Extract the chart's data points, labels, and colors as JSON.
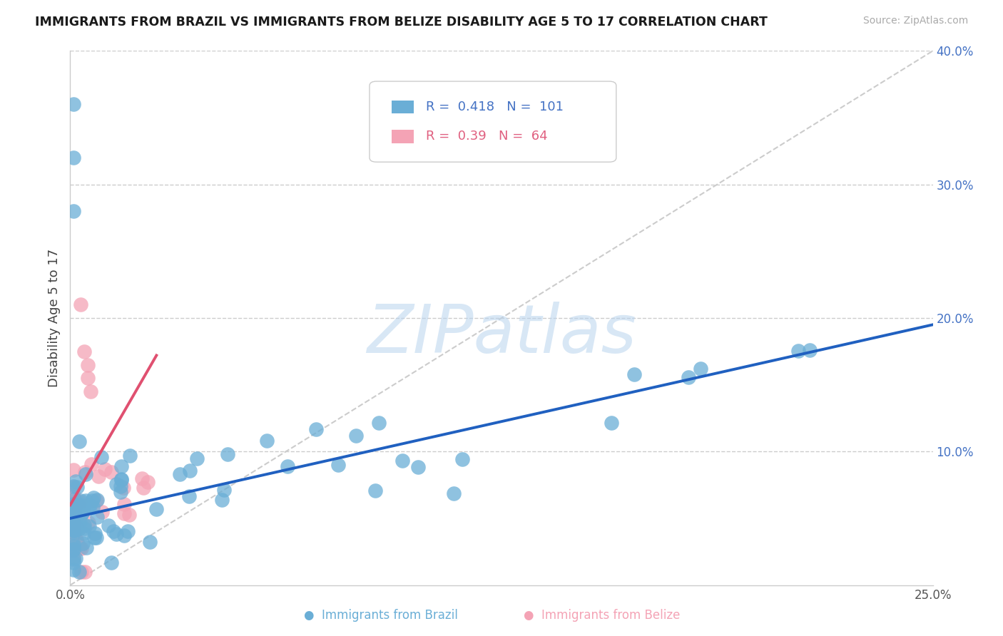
{
  "title": "IMMIGRANTS FROM BRAZIL VS IMMIGRANTS FROM BELIZE DISABILITY AGE 5 TO 17 CORRELATION CHART",
  "source": "Source: ZipAtlas.com",
  "ylabel": "Disability Age 5 to 17",
  "xlim": [
    0.0,
    0.25
  ],
  "ylim": [
    0.0,
    0.4
  ],
  "brazil_color": "#6aaed6",
  "belize_color": "#f4a3b5",
  "brazil_trend_color": "#2060c0",
  "belize_trend_color": "#e05070",
  "brazil_R": 0.418,
  "brazil_N": 101,
  "belize_R": 0.39,
  "belize_N": 64,
  "brazil_legend_color": "#4472c4",
  "belize_legend_color": "#e06080",
  "ytick_color": "#4472c4",
  "watermark_text": "ZIPatlas",
  "background_color": "#ffffff",
  "grid_color": "#cccccc",
  "ref_line_color": "#cccccc",
  "title_fontsize": 12.5,
  "source_fontsize": 10,
  "tick_fontsize": 12
}
